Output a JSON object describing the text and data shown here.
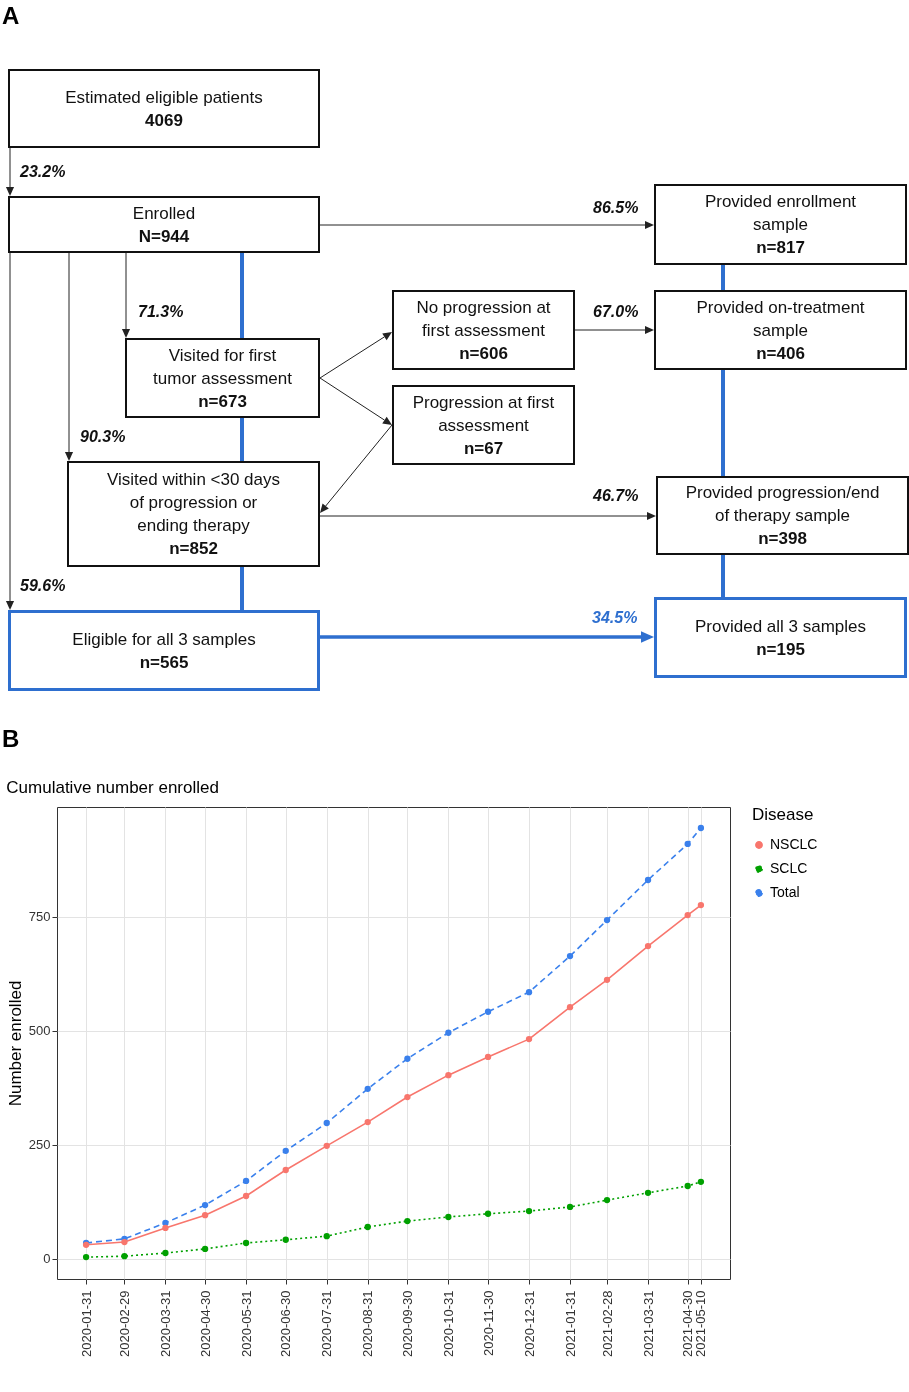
{
  "chart_data": [
    {
      "type": "other",
      "annotations": [
        "A",
        "Estimated eligible patients\n4069",
        "Enrolled\nN=944",
        "Visited for first\ntumor assessment\nn=673",
        "Visited within <30 days\nof progression or\nending therapy\nn=852",
        "Eligible for all 3 samples\nn=565",
        "No progression at\nfirst assessment\nn=606",
        "Progression at first\nassessment\nn=67",
        "Provided enrollment\nsample\nn=817",
        "Provided on-treatment\nsample\nn=406",
        "Provided progression/end\nof therapy sample\nn=398",
        "Provided all 3 samples\nn=195",
        "23.2%",
        "86.5%",
        "71.3%",
        "67.0%",
        "90.3%",
        "46.7%",
        "59.6%",
        "34.5%"
      ]
    },
    {
      "type": "line",
      "title": "Cumulative number enrolled",
      "ylabel": "Number enrolled",
      "legend_title": "Disease",
      "annotations": [
        "B"
      ],
      "x": [
        "2020-01-31",
        "2020-02-29",
        "2020-03-31",
        "2020-04-30",
        "2020-05-31",
        "2020-06-30",
        "2020-07-31",
        "2020-08-31",
        "2020-09-30",
        "2020-10-31",
        "2020-11-30",
        "2020-12-31",
        "2021-01-31",
        "2021-02-28",
        "2021-03-31",
        "2021-04-30",
        "2021-05-10"
      ],
      "series": [
        {
          "name": "NSCLC",
          "color": "#f8766d",
          "line_style": "solid",
          "values": [
            31,
            37,
            68,
            96,
            138,
            195,
            248,
            300,
            355,
            403,
            443,
            482,
            552,
            612,
            686,
            754,
            776
          ]
        },
        {
          "name": "SCLC",
          "color": "#00a000",
          "line_style": "dotted",
          "values": [
            4,
            6,
            13,
            22,
            35,
            42,
            50,
            70,
            83,
            92,
            99,
            105,
            114,
            129,
            145,
            160,
            169
          ]
        },
        {
          "name": "Total",
          "color": "#3a80ec",
          "line_style": "dashed",
          "values": [
            35,
            44,
            79,
            118,
            171,
            237,
            298,
            373,
            439,
            496,
            542,
            585,
            664,
            743,
            831,
            910,
            945
          ]
        }
      ],
      "xlim": [
        "2020-01-09",
        "2021-06-01"
      ],
      "xticks": [
        "2020-01-31",
        "2020-02-29",
        "2020-03-31",
        "2020-04-30",
        "2020-05-31",
        "2020-06-30",
        "2020-07-31",
        "2020-08-31",
        "2020-09-30",
        "2020-10-31",
        "2020-11-30",
        "2020-12-31",
        "2021-01-31",
        "2021-02-28",
        "2021-03-31",
        "2021-04-30",
        "2021-05-10"
      ],
      "ylim": [
        -44,
        991
      ],
      "yticks": [
        0,
        250,
        500,
        750
      ],
      "grid": true,
      "legend": "right",
      "marker": "circle"
    }
  ]
}
